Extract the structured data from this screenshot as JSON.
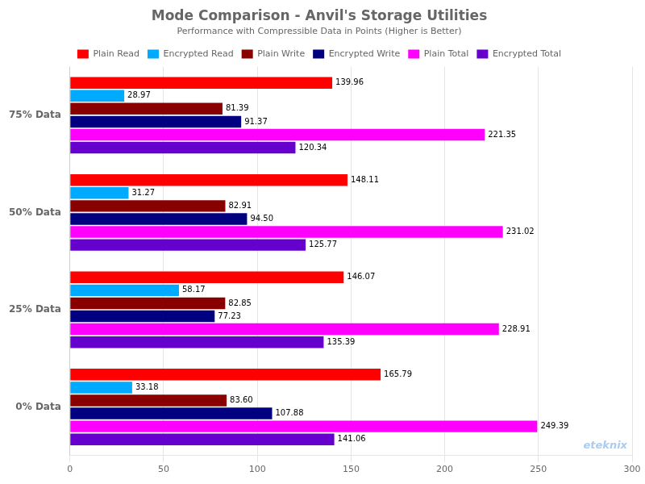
{
  "chart_data": {
    "type": "bar",
    "orientation": "horizontal",
    "title": "Mode Comparison - Anvil's Storage Utilities",
    "subtitle": "Performance with Compressible Data in Points (Higher is Better)",
    "categories": [
      "75% Data",
      "50% Data",
      "25% Data",
      "0% Data"
    ],
    "series": [
      {
        "name": "Plain Read",
        "color": "#ff0000",
        "values": [
          139.96,
          148.11,
          146.07,
          165.79
        ],
        "value_labels": [
          "139.96",
          "148.11",
          "146.07",
          "165.79"
        ]
      },
      {
        "name": "Encrypted Read",
        "color": "#00aaff",
        "values": [
          28.97,
          31.27,
          58.17,
          33.18
        ],
        "value_labels": [
          "28.97",
          "31.27",
          "58.17",
          "33.18"
        ]
      },
      {
        "name": "Plain Write",
        "color": "#880000",
        "values": [
          81.39,
          82.91,
          82.85,
          83.6
        ],
        "value_labels": [
          "81.39",
          "82.91",
          "82.85",
          "83.60"
        ]
      },
      {
        "name": "Encrypted Write",
        "color": "#000080",
        "values": [
          91.37,
          94.5,
          77.23,
          107.88
        ],
        "value_labels": [
          "91.37",
          "94.50",
          "77.23",
          "107.88"
        ]
      },
      {
        "name": "Plain Total",
        "color": "#ff00ff",
        "values": [
          221.35,
          231.02,
          228.91,
          249.39
        ],
        "value_labels": [
          "221.35",
          "231.02",
          "228.91",
          "249.39"
        ]
      },
      {
        "name": "Encrypted Total",
        "color": "#6600cc",
        "values": [
          120.34,
          125.77,
          135.39,
          141.06
        ],
        "value_labels": [
          "120.34",
          "125.77",
          "135.39",
          "141.06"
        ]
      }
    ],
    "xlim": [
      0,
      300
    ],
    "xticks": [
      0,
      50,
      100,
      150,
      200,
      250,
      300
    ],
    "grid": true,
    "legend": "top",
    "data_labels": true,
    "annotations": [
      {
        "text": "eteknix",
        "color": "#aaccee"
      }
    ]
  }
}
